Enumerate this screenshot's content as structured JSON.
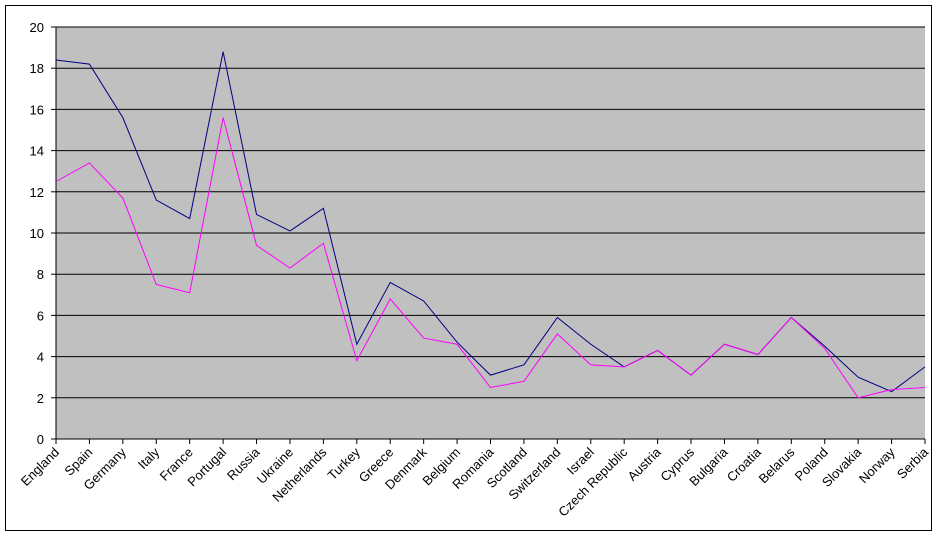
{
  "chart_data": {
    "type": "line",
    "categories": [
      "England",
      "Spain",
      "Germany",
      "Italy",
      "France",
      "Portugal",
      "Russia",
      "Ukraine",
      "Netherlands",
      "Turkey",
      "Greece",
      "Denmark",
      "Belgium",
      "Romania",
      "Scotland",
      "Switzerland",
      "Israel",
      "Czech Republic",
      "Austria",
      "Cyprus",
      "Bulgaria",
      "Croatia",
      "Belarus",
      "Poland",
      "Slovakia",
      "Norway",
      "Serbia"
    ],
    "series": [
      {
        "color": "#000080",
        "values": [
          18.4,
          18.2,
          15.6,
          11.6,
          10.7,
          18.8,
          10.9,
          10.1,
          11.2,
          4.6,
          7.6,
          6.7,
          4.7,
          3.1,
          3.6,
          5.9,
          4.6,
          3.5,
          4.3,
          3.1,
          4.6,
          4.1,
          5.9,
          4.5,
          3.0,
          2.3,
          3.5
        ]
      },
      {
        "color": "#ff00ff",
        "values": [
          12.5,
          13.4,
          11.7,
          7.5,
          7.1,
          15.6,
          9.4,
          8.3,
          9.5,
          3.8,
          6.8,
          4.9,
          4.6,
          2.5,
          2.8,
          5.1,
          3.6,
          3.5,
          4.3,
          3.1,
          4.6,
          4.1,
          5.9,
          4.4,
          2.0,
          2.4,
          2.5
        ]
      }
    ],
    "ylim": [
      0,
      20
    ],
    "yticks": [
      0,
      2,
      4,
      6,
      8,
      10,
      12,
      14,
      16,
      18,
      20
    ],
    "grid": true
  }
}
